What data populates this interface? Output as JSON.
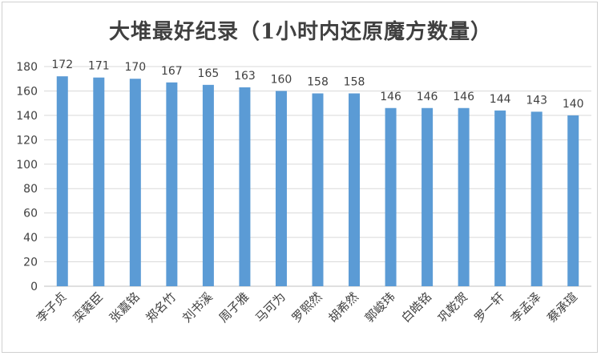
{
  "chart_data": {
    "type": "bar",
    "title": "大堆最好纪录（1小时内还原魔方数量）",
    "xlabel": "",
    "ylabel": "",
    "categories": [
      "李子贞",
      "栾蕤臣",
      "张嘉铭",
      "郑名竹",
      "刘书溪",
      "周子雅",
      "马可为",
      "罗熙然",
      "胡希然",
      "郭峻玮",
      "白皓铭",
      "巩乾贺",
      "罗一轩",
      "李孟泽",
      "蔡承瑄"
    ],
    "values": [
      172,
      171,
      170,
      167,
      165,
      163,
      160,
      158,
      158,
      146,
      146,
      146,
      144,
      143,
      140
    ],
    "ylim": [
      0,
      180
    ],
    "yticks": [
      0,
      20,
      40,
      60,
      80,
      100,
      120,
      140,
      160,
      180
    ],
    "grid": true,
    "legend": "none",
    "data_labels": true,
    "colors": {
      "bar": "#5b9bd5",
      "grid": "#d9d9d9",
      "text": "#404040"
    }
  }
}
